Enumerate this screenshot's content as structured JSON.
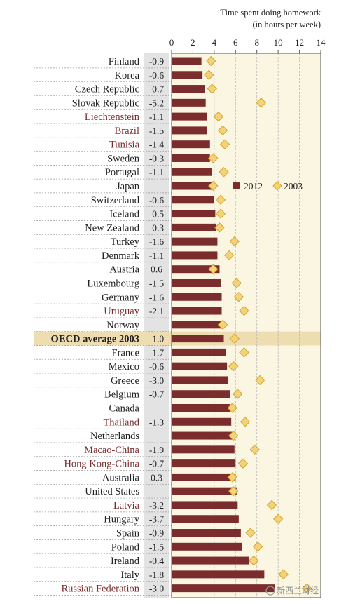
{
  "chart_data": {
    "type": "bar",
    "title": "Time spent doing homework",
    "subtitle": "(in hours per week)",
    "xlim": [
      0,
      14
    ],
    "ticks": [
      "0",
      "2",
      "4",
      "6",
      "8",
      "10",
      "12",
      "14"
    ],
    "grid": true,
    "legend": {
      "position": "right",
      "items": [
        "2012",
        "2003"
      ]
    },
    "series": [
      {
        "name": "2012",
        "kind": "bar",
        "color": "#7b2d2d"
      },
      {
        "name": "2003",
        "kind": "diamond",
        "color": "#f2d27a"
      }
    ],
    "highlight_category": "OECD average 2003",
    "rows": [
      {
        "label": "Finland",
        "diff": "-0.9",
        "v2012": 2.8,
        "v2003": 3.7,
        "partner": false
      },
      {
        "label": "Korea",
        "diff": "-0.6",
        "v2012": 2.9,
        "v2003": 3.5,
        "partner": false
      },
      {
        "label": "Czech Republic",
        "diff": "-0.7",
        "v2012": 3.1,
        "v2003": 3.8,
        "partner": false
      },
      {
        "label": "Slovak Republic",
        "diff": "-5.2",
        "v2012": 3.2,
        "v2003": 8.4,
        "partner": false
      },
      {
        "label": "Liechtenstein",
        "diff": "-1.1",
        "v2012": 3.3,
        "v2003": 4.4,
        "partner": true
      },
      {
        "label": "Brazil",
        "diff": "-1.5",
        "v2012": 3.3,
        "v2003": 4.8,
        "partner": true
      },
      {
        "label": "Tunisia",
        "diff": "-1.4",
        "v2012": 3.6,
        "v2003": 5.0,
        "partner": true
      },
      {
        "label": "Sweden",
        "diff": "-0.3",
        "v2012": 3.6,
        "v2003": 3.9,
        "partner": false
      },
      {
        "label": "Portugal",
        "diff": "-1.1",
        "v2012": 3.8,
        "v2003": 4.9,
        "partner": false
      },
      {
        "label": "Japan",
        "diff": "",
        "v2012": 3.8,
        "v2003": 3.9,
        "partner": false
      },
      {
        "label": "Switzerland",
        "diff": "-0.6",
        "v2012": 4.0,
        "v2003": 4.6,
        "partner": false
      },
      {
        "label": "Iceland",
        "diff": "-0.5",
        "v2012": 4.1,
        "v2003": 4.6,
        "partner": false
      },
      {
        "label": "New Zealand",
        "diff": "-0.3",
        "v2012": 4.2,
        "v2003": 4.5,
        "partner": false
      },
      {
        "label": "Turkey",
        "diff": "-1.6",
        "v2012": 4.3,
        "v2003": 5.9,
        "partner": false
      },
      {
        "label": "Denmark",
        "diff": "-1.1",
        "v2012": 4.3,
        "v2003": 5.4,
        "partner": false
      },
      {
        "label": "Austria",
        "diff": "0.6",
        "v2012": 4.5,
        "v2003": 3.9,
        "partner": false
      },
      {
        "label": "Luxembourg",
        "diff": "-1.5",
        "v2012": 4.6,
        "v2003": 6.1,
        "partner": false
      },
      {
        "label": "Germany",
        "diff": "-1.6",
        "v2012": 4.7,
        "v2003": 6.3,
        "partner": false
      },
      {
        "label": "Uruguay",
        "diff": "-2.1",
        "v2012": 4.7,
        "v2003": 6.8,
        "partner": true
      },
      {
        "label": "Norway",
        "diff": "",
        "v2012": 4.8,
        "v2003": 4.8,
        "partner": false
      },
      {
        "label": "OECD average 2003",
        "diff": "-1.0",
        "v2012": 4.9,
        "v2003": 5.9,
        "partner": false
      },
      {
        "label": "France",
        "diff": "-1.7",
        "v2012": 5.1,
        "v2003": 6.8,
        "partner": false
      },
      {
        "label": "Mexico",
        "diff": "-0.6",
        "v2012": 5.2,
        "v2003": 5.8,
        "partner": false
      },
      {
        "label": "Greece",
        "diff": "-3.0",
        "v2012": 5.3,
        "v2003": 8.3,
        "partner": false
      },
      {
        "label": "Belgium",
        "diff": "-0.7",
        "v2012": 5.5,
        "v2003": 6.2,
        "partner": false
      },
      {
        "label": "Canada",
        "diff": "",
        "v2012": 5.5,
        "v2003": 5.7,
        "partner": false
      },
      {
        "label": "Thailand",
        "diff": "-1.3",
        "v2012": 5.6,
        "v2003": 6.9,
        "partner": true
      },
      {
        "label": "Netherlands",
        "diff": "",
        "v2012": 5.7,
        "v2003": 5.8,
        "partner": false
      },
      {
        "label": "Macao-China",
        "diff": "-1.9",
        "v2012": 5.9,
        "v2003": 7.8,
        "partner": true
      },
      {
        "label": "Hong Kong-China",
        "diff": "-0.7",
        "v2012": 6.0,
        "v2003": 6.7,
        "partner": true
      },
      {
        "label": "Australia",
        "diff": "0.3",
        "v2012": 6.0,
        "v2003": 5.7,
        "partner": false
      },
      {
        "label": "United States",
        "diff": "",
        "v2012": 6.1,
        "v2003": 5.8,
        "partner": false
      },
      {
        "label": "Latvia",
        "diff": "-3.2",
        "v2012": 6.2,
        "v2003": 9.4,
        "partner": true
      },
      {
        "label": "Hungary",
        "diff": "-3.7",
        "v2012": 6.3,
        "v2003": 10.0,
        "partner": false
      },
      {
        "label": "Spain",
        "diff": "-0.9",
        "v2012": 6.5,
        "v2003": 7.4,
        "partner": false
      },
      {
        "label": "Poland",
        "diff": "-1.5",
        "v2012": 6.6,
        "v2003": 8.1,
        "partner": false
      },
      {
        "label": "Ireland",
        "diff": "-0.4",
        "v2012": 7.3,
        "v2003": 7.7,
        "partner": false
      },
      {
        "label": "Italy",
        "diff": "-1.8",
        "v2012": 8.7,
        "v2003": 10.5,
        "partner": false
      },
      {
        "label": "Russian Federation",
        "diff": "-3.0",
        "v2012": 9.7,
        "v2003": 12.7,
        "partner": true
      }
    ],
    "watermark": "新西兰财经"
  },
  "colors": {
    "bar": "#7b2d2d",
    "diamond_fill": "#f2d27a",
    "diamond_stroke": "#d4a62a",
    "plot_bg": "#fbf6e2",
    "diff_bg": "#e3e3e3",
    "highlight_bg": "#eeddb0",
    "partner_label": "#7b2d2d",
    "oecd_label": "#222222"
  }
}
